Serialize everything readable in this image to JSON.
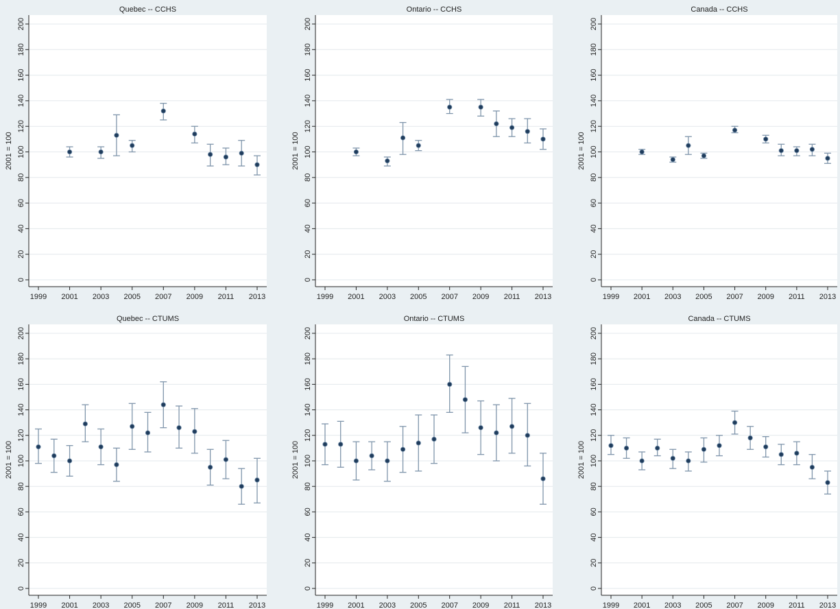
{
  "chart_data": [
    {
      "type": "scatter",
      "error_bars": true,
      "title": "Quebec -- CCHS",
      "ylabel": "2001 = 100",
      "xlim": [
        1999,
        2013
      ],
      "ylim": [
        0,
        200
      ],
      "xticks": [
        1999,
        2001,
        2003,
        2005,
        2007,
        2009,
        2011,
        2013
      ],
      "yticks": [
        0,
        20,
        40,
        60,
        80,
        100,
        120,
        140,
        160,
        180,
        200
      ],
      "grid": true,
      "points": [
        {
          "x": 2001,
          "y": 100,
          "lo": 96,
          "hi": 104
        },
        {
          "x": 2003,
          "y": 100,
          "lo": 95,
          "hi": 104
        },
        {
          "x": 2004,
          "y": 113,
          "lo": 97,
          "hi": 129
        },
        {
          "x": 2005,
          "y": 105,
          "lo": 100,
          "hi": 109
        },
        {
          "x": 2007,
          "y": 132,
          "lo": 125,
          "hi": 138
        },
        {
          "x": 2009,
          "y": 114,
          "lo": 107,
          "hi": 120
        },
        {
          "x": 2010,
          "y": 98,
          "lo": 89,
          "hi": 106
        },
        {
          "x": 2011,
          "y": 96,
          "lo": 90,
          "hi": 103
        },
        {
          "x": 2012,
          "y": 99,
          "lo": 89,
          "hi": 109
        },
        {
          "x": 2013,
          "y": 90,
          "lo": 82,
          "hi": 97
        }
      ]
    },
    {
      "type": "scatter",
      "error_bars": true,
      "title": "Ontario -- CCHS",
      "ylabel": "2001 = 100",
      "xlim": [
        1999,
        2013
      ],
      "ylim": [
        0,
        200
      ],
      "xticks": [
        1999,
        2001,
        2003,
        2005,
        2007,
        2009,
        2011,
        2013
      ],
      "yticks": [
        0,
        20,
        40,
        60,
        80,
        100,
        120,
        140,
        160,
        180,
        200
      ],
      "grid": true,
      "points": [
        {
          "x": 2001,
          "y": 100,
          "lo": 97,
          "hi": 103
        },
        {
          "x": 2003,
          "y": 93,
          "lo": 89,
          "hi": 96
        },
        {
          "x": 2004,
          "y": 111,
          "lo": 98,
          "hi": 123
        },
        {
          "x": 2005,
          "y": 105,
          "lo": 101,
          "hi": 109
        },
        {
          "x": 2007,
          "y": 135,
          "lo": 130,
          "hi": 141
        },
        {
          "x": 2009,
          "y": 135,
          "lo": 128,
          "hi": 141
        },
        {
          "x": 2010,
          "y": 122,
          "lo": 112,
          "hi": 132
        },
        {
          "x": 2011,
          "y": 119,
          "lo": 112,
          "hi": 126
        },
        {
          "x": 2012,
          "y": 116,
          "lo": 107,
          "hi": 126
        },
        {
          "x": 2013,
          "y": 110,
          "lo": 102,
          "hi": 118
        }
      ]
    },
    {
      "type": "scatter",
      "error_bars": true,
      "title": "Canada -- CCHS",
      "ylabel": "2001 = 100",
      "xlim": [
        1999,
        2013
      ],
      "ylim": [
        0,
        200
      ],
      "xticks": [
        1999,
        2001,
        2003,
        2005,
        2007,
        2009,
        2011,
        2013
      ],
      "yticks": [
        0,
        20,
        40,
        60,
        80,
        100,
        120,
        140,
        160,
        180,
        200
      ],
      "grid": true,
      "points": [
        {
          "x": 2001,
          "y": 100,
          "lo": 98,
          "hi": 102
        },
        {
          "x": 2003,
          "y": 94,
          "lo": 92,
          "hi": 96
        },
        {
          "x": 2004,
          "y": 105,
          "lo": 98,
          "hi": 112
        },
        {
          "x": 2005,
          "y": 97,
          "lo": 95,
          "hi": 99
        },
        {
          "x": 2007,
          "y": 117,
          "lo": 115,
          "hi": 120
        },
        {
          "x": 2009,
          "y": 110,
          "lo": 107,
          "hi": 113
        },
        {
          "x": 2010,
          "y": 101,
          "lo": 97,
          "hi": 106
        },
        {
          "x": 2011,
          "y": 101,
          "lo": 97,
          "hi": 104
        },
        {
          "x": 2012,
          "y": 102,
          "lo": 97,
          "hi": 106
        },
        {
          "x": 2013,
          "y": 95,
          "lo": 91,
          "hi": 99
        }
      ]
    },
    {
      "type": "scatter",
      "error_bars": true,
      "title": "Quebec -- CTUMS",
      "ylabel": "2001 = 100",
      "xlim": [
        1999,
        2013
      ],
      "ylim": [
        0,
        200
      ],
      "xticks": [
        1999,
        2001,
        2003,
        2005,
        2007,
        2009,
        2011,
        2013
      ],
      "yticks": [
        0,
        20,
        40,
        60,
        80,
        100,
        120,
        140,
        160,
        180,
        200
      ],
      "grid": true,
      "points": [
        {
          "x": 1999,
          "y": 111,
          "lo": 98,
          "hi": 125
        },
        {
          "x": 2000,
          "y": 104,
          "lo": 91,
          "hi": 117
        },
        {
          "x": 2001,
          "y": 100,
          "lo": 88,
          "hi": 112
        },
        {
          "x": 2002,
          "y": 129,
          "lo": 115,
          "hi": 144
        },
        {
          "x": 2003,
          "y": 111,
          "lo": 97,
          "hi": 125
        },
        {
          "x": 2004,
          "y": 97,
          "lo": 84,
          "hi": 110
        },
        {
          "x": 2005,
          "y": 127,
          "lo": 109,
          "hi": 145
        },
        {
          "x": 2006,
          "y": 122,
          "lo": 107,
          "hi": 138
        },
        {
          "x": 2007,
          "y": 144,
          "lo": 126,
          "hi": 162
        },
        {
          "x": 2008,
          "y": 126,
          "lo": 110,
          "hi": 143
        },
        {
          "x": 2009,
          "y": 123,
          "lo": 106,
          "hi": 141
        },
        {
          "x": 2010,
          "y": 95,
          "lo": 81,
          "hi": 109
        },
        {
          "x": 2011,
          "y": 101,
          "lo": 86,
          "hi": 116
        },
        {
          "x": 2012,
          "y": 80,
          "lo": 66,
          "hi": 94
        },
        {
          "x": 2013,
          "y": 85,
          "lo": 67,
          "hi": 102
        }
      ]
    },
    {
      "type": "scatter",
      "error_bars": true,
      "title": "Ontario -- CTUMS",
      "ylabel": "2001 = 100",
      "xlim": [
        1999,
        2013
      ],
      "ylim": [
        0,
        200
      ],
      "xticks": [
        1999,
        2001,
        2003,
        2005,
        2007,
        2009,
        2011,
        2013
      ],
      "yticks": [
        0,
        20,
        40,
        60,
        80,
        100,
        120,
        140,
        160,
        180,
        200
      ],
      "grid": true,
      "points": [
        {
          "x": 1999,
          "y": 113,
          "lo": 97,
          "hi": 129
        },
        {
          "x": 2000,
          "y": 113,
          "lo": 95,
          "hi": 131
        },
        {
          "x": 2001,
          "y": 100,
          "lo": 85,
          "hi": 115
        },
        {
          "x": 2002,
          "y": 104,
          "lo": 93,
          "hi": 115
        },
        {
          "x": 2003,
          "y": 100,
          "lo": 84,
          "hi": 115
        },
        {
          "x": 2004,
          "y": 109,
          "lo": 91,
          "hi": 127
        },
        {
          "x": 2005,
          "y": 114,
          "lo": 92,
          "hi": 136
        },
        {
          "x": 2006,
          "y": 117,
          "lo": 98,
          "hi": 136
        },
        {
          "x": 2007,
          "y": 160,
          "lo": 138,
          "hi": 183
        },
        {
          "x": 2008,
          "y": 148,
          "lo": 122,
          "hi": 174
        },
        {
          "x": 2009,
          "y": 126,
          "lo": 105,
          "hi": 147
        },
        {
          "x": 2010,
          "y": 122,
          "lo": 100,
          "hi": 144
        },
        {
          "x": 2011,
          "y": 127,
          "lo": 106,
          "hi": 149
        },
        {
          "x": 2012,
          "y": 120,
          "lo": 96,
          "hi": 145
        },
        {
          "x": 2013,
          "y": 86,
          "lo": 66,
          "hi": 106
        }
      ]
    },
    {
      "type": "scatter",
      "error_bars": true,
      "title": "Canada -- CTUMS",
      "ylabel": "2001 = 100",
      "xlim": [
        1999,
        2013
      ],
      "ylim": [
        0,
        200
      ],
      "xticks": [
        1999,
        2001,
        2003,
        2005,
        2007,
        2009,
        2011,
        2013
      ],
      "yticks": [
        0,
        20,
        40,
        60,
        80,
        100,
        120,
        140,
        160,
        180,
        200
      ],
      "grid": true,
      "points": [
        {
          "x": 1999,
          "y": 112,
          "lo": 105,
          "hi": 120
        },
        {
          "x": 2000,
          "y": 110,
          "lo": 102,
          "hi": 118
        },
        {
          "x": 2001,
          "y": 100,
          "lo": 93,
          "hi": 107
        },
        {
          "x": 2002,
          "y": 110,
          "lo": 104,
          "hi": 117
        },
        {
          "x": 2003,
          "y": 102,
          "lo": 94,
          "hi": 109
        },
        {
          "x": 2004,
          "y": 100,
          "lo": 92,
          "hi": 107
        },
        {
          "x": 2005,
          "y": 109,
          "lo": 99,
          "hi": 118
        },
        {
          "x": 2006,
          "y": 112,
          "lo": 104,
          "hi": 120
        },
        {
          "x": 2007,
          "y": 130,
          "lo": 121,
          "hi": 139
        },
        {
          "x": 2008,
          "y": 118,
          "lo": 109,
          "hi": 127
        },
        {
          "x": 2009,
          "y": 111,
          "lo": 103,
          "hi": 119
        },
        {
          "x": 2010,
          "y": 105,
          "lo": 97,
          "hi": 113
        },
        {
          "x": 2011,
          "y": 106,
          "lo": 97,
          "hi": 115
        },
        {
          "x": 2012,
          "y": 95,
          "lo": 86,
          "hi": 105
        },
        {
          "x": 2013,
          "y": 83,
          "lo": 74,
          "hi": 92
        }
      ]
    }
  ],
  "colors": {
    "background": "#eaf0f3",
    "plot_area": "#ffffff",
    "grid": "#e3e8ec",
    "error_bar": "#7f95ab",
    "marker": "#1f3c5c",
    "marker_edge": "#6f8aa6",
    "axis": "#222222"
  }
}
